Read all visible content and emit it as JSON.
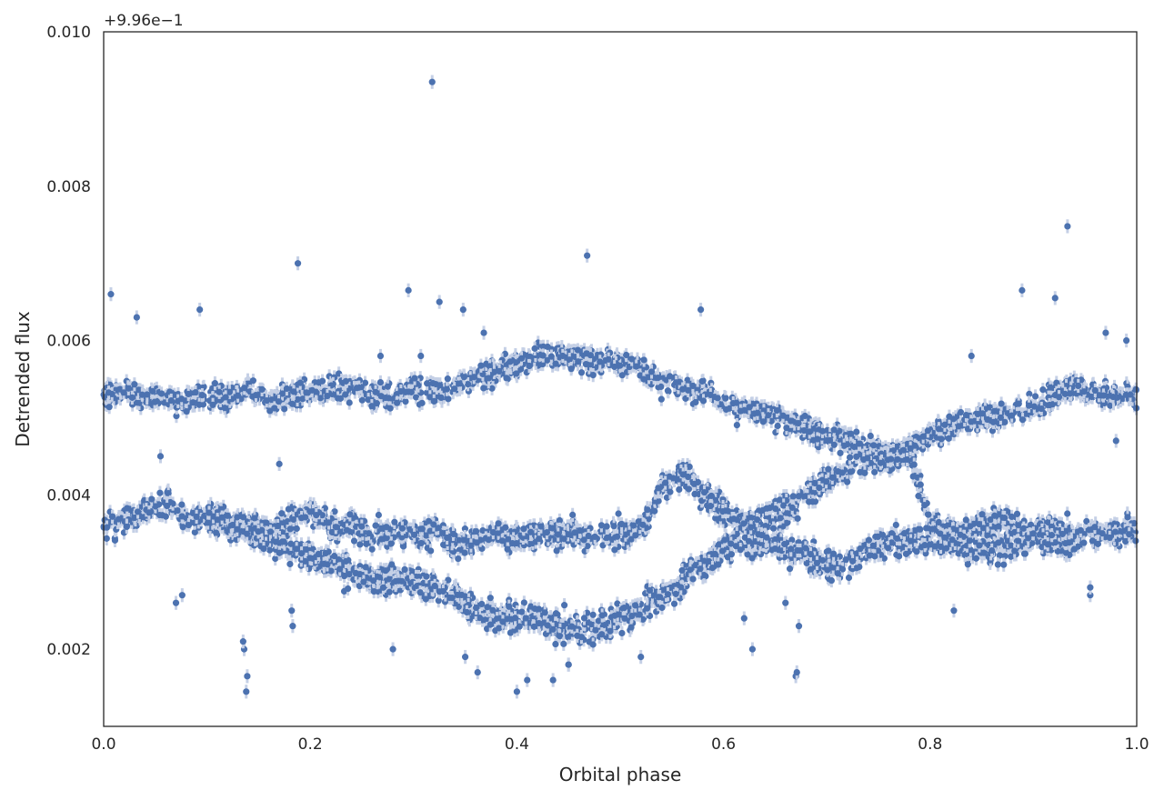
{
  "chart_data": {
    "type": "scatter",
    "xlabel": "Orbital phase",
    "ylabel": "Detrended flux",
    "y_offset_label": "+9.96e−1",
    "xlim": [
      0.0,
      1.0
    ],
    "ylim": [
      0.001,
      0.01
    ],
    "x_ticks": [
      0.0,
      0.2,
      0.4,
      0.6,
      0.8,
      1.0
    ],
    "x_tick_labels": [
      "0.0",
      "0.2",
      "0.4",
      "0.6",
      "0.8",
      "1.0"
    ],
    "y_ticks": [
      0.002,
      0.004,
      0.006,
      0.008,
      0.01
    ],
    "y_tick_labels": [
      "0.002",
      "0.004",
      "0.006",
      "0.008",
      "0.010"
    ],
    "grid": false,
    "marker_color": "#4c72b0",
    "errorbar_color": "#c5d0e6",
    "errorbar_halfwidth": 9e-05,
    "series": [
      {
        "branch": "upper",
        "x": [
          0.0,
          0.02,
          0.04,
          0.06,
          0.08,
          0.1,
          0.12,
          0.14,
          0.16,
          0.18,
          0.2,
          0.22,
          0.24,
          0.26,
          0.28,
          0.3,
          0.32,
          0.34,
          0.36,
          0.38,
          0.4,
          0.42,
          0.44,
          0.46,
          0.48,
          0.5,
          0.52,
          0.535,
          0.76,
          0.78,
          0.8,
          0.82,
          0.84,
          0.86,
          0.88,
          0.9,
          0.92,
          0.94,
          0.96,
          0.98,
          1.0
        ],
        "y": [
          0.0053,
          0.0053,
          0.0053,
          0.00525,
          0.0052,
          0.0053,
          0.0053,
          0.0054,
          0.0052,
          0.0053,
          0.0053,
          0.0054,
          0.0054,
          0.0053,
          0.0053,
          0.0054,
          0.0053,
          0.0054,
          0.0055,
          0.0056,
          0.0057,
          0.0058,
          0.0058,
          0.0058,
          0.0057,
          0.0057,
          0.0057,
          0.0055,
          0.0045,
          0.0046,
          0.0048,
          0.0049,
          0.005,
          0.005,
          0.0051,
          0.0051,
          0.0053,
          0.0054,
          0.0053,
          0.0053,
          0.0053
        ],
        "spread": 0.00013
      },
      {
        "branch": "middle",
        "x": [
          0.0,
          0.02,
          0.04,
          0.06,
          0.08,
          0.1,
          0.12,
          0.14,
          0.16,
          0.18,
          0.2,
          0.22,
          0.24,
          0.26,
          0.28,
          0.3,
          0.32,
          0.34,
          0.36,
          0.38,
          0.4,
          0.42,
          0.44,
          0.46,
          0.48,
          0.5,
          0.52,
          0.54,
          0.56,
          0.58,
          0.6,
          0.62,
          0.64,
          0.66,
          0.68,
          0.7,
          0.72,
          0.74,
          0.76,
          0.78,
          0.8,
          0.82,
          0.84,
          0.86,
          0.88,
          0.9,
          0.92,
          0.94,
          0.96,
          0.98,
          1.0
        ],
        "y": [
          0.0036,
          0.0037,
          0.0038,
          0.0039,
          0.0037,
          0.0037,
          0.0036,
          0.0036,
          0.0035,
          0.0037,
          0.0038,
          0.0036,
          0.0036,
          0.0035,
          0.0035,
          0.0035,
          0.0035,
          0.0034,
          0.0034,
          0.0035,
          0.0034,
          0.0035,
          0.0035,
          0.0035,
          0.0034,
          0.0035,
          0.0035,
          0.0041,
          0.0043,
          0.004,
          0.0038,
          0.0036,
          0.0037,
          0.0038,
          0.004,
          0.0042,
          0.0043,
          0.0044,
          0.0045,
          0.0046,
          0.0036,
          0.0035,
          0.0036,
          0.0037,
          0.0036,
          0.0035,
          0.0036,
          0.0035,
          0.0035,
          0.0035,
          0.0036
        ],
        "spread": 0.00014
      },
      {
        "branch": "lower",
        "x": [
          0.1,
          0.12,
          0.14,
          0.16,
          0.18,
          0.2,
          0.22,
          0.24,
          0.26,
          0.28,
          0.3,
          0.32,
          0.34,
          0.36,
          0.38,
          0.4,
          0.42,
          0.44,
          0.46,
          0.48,
          0.5,
          0.52,
          0.54,
          0.56,
          0.58,
          0.6,
          0.62,
          0.64,
          0.66,
          0.68,
          0.7,
          0.72,
          0.74,
          0.76,
          0.78,
          0.8,
          0.82,
          0.84,
          0.86,
          0.88,
          0.9,
          0.92,
          0.94
        ],
        "y": [
          0.0038,
          0.0037,
          0.0035,
          0.0034,
          0.0033,
          0.0032,
          0.0031,
          0.003,
          0.0029,
          0.0029,
          0.0029,
          0.0028,
          0.0027,
          0.0025,
          0.0024,
          0.0024,
          0.0024,
          0.0023,
          0.0023,
          0.0023,
          0.0024,
          0.0025,
          0.0027,
          0.0029,
          0.0031,
          0.0033,
          0.0034,
          0.0034,
          0.0033,
          0.0032,
          0.0031,
          0.0031,
          0.0033,
          0.0034,
          0.0034,
          0.0034,
          0.0034,
          0.0033,
          0.0033,
          0.0033,
          0.0034,
          0.0034,
          0.0033
        ],
        "spread": 0.00015
      }
    ],
    "outliers": {
      "x": [
        0.007,
        0.032,
        0.093,
        0.188,
        0.138,
        0.139,
        0.295,
        0.318,
        0.325,
        0.348,
        0.368,
        0.468,
        0.578,
        0.573,
        0.655,
        0.889,
        0.921,
        0.933,
        0.97,
        0.99,
        0.98,
        0.136,
        0.135,
        0.07,
        0.076,
        0.183,
        0.182,
        0.28,
        0.35,
        0.362,
        0.4,
        0.41,
        0.435,
        0.45,
        0.52,
        0.45,
        0.67,
        0.671,
        0.673,
        0.628,
        0.62,
        0.66,
        0.84,
        0.823,
        0.955,
        0.955,
        0.17,
        0.268,
        0.307,
        0.055
      ],
      "y": [
        0.0066,
        0.0063,
        0.0064,
        0.007,
        0.00145,
        0.00165,
        0.00665,
        0.00935,
        0.0065,
        0.0064,
        0.0061,
        0.0071,
        0.0064,
        0.0052,
        0.0037,
        0.00665,
        0.00655,
        0.00748,
        0.0061,
        0.006,
        0.0047,
        0.002,
        0.0021,
        0.0026,
        0.0027,
        0.0023,
        0.0025,
        0.002,
        0.0019,
        0.0017,
        0.00145,
        0.0016,
        0.0016,
        0.0018,
        0.0019,
        0.0018,
        0.00165,
        0.0017,
        0.0023,
        0.002,
        0.0024,
        0.0026,
        0.0058,
        0.0025,
        0.0027,
        0.0028,
        0.0044,
        0.0058,
        0.0058,
        0.0045
      ]
    }
  }
}
